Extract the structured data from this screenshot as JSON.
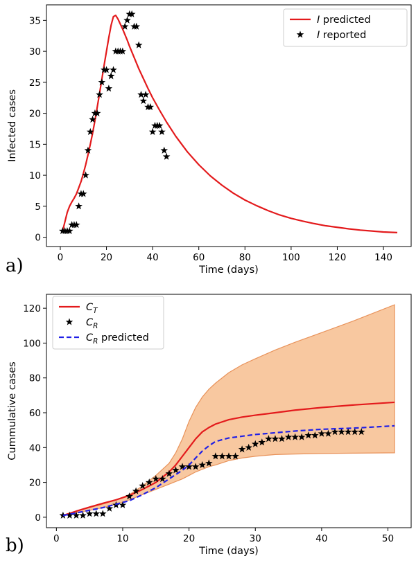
{
  "chart_data": [
    {
      "type": "line",
      "panel_label": "a)",
      "xlabel": "Time (days)",
      "ylabel": "Infected cases",
      "xlim": [
        -6,
        152
      ],
      "ylim": [
        -1.5,
        37.5
      ],
      "xticks": [
        0,
        20,
        40,
        60,
        80,
        100,
        120,
        140
      ],
      "yticks": [
        0,
        5,
        10,
        15,
        20,
        25,
        30,
        35
      ],
      "grid": false,
      "legend_position": "top-right",
      "series": [
        {
          "name": "I predicted",
          "name_italic": "I",
          "name_rest": " predicted",
          "kind": "line",
          "color": "#e31a1c",
          "x": [
            1,
            2,
            3,
            4,
            5,
            6,
            7,
            8,
            9,
            10,
            11,
            12,
            13,
            14,
            15,
            16,
            17,
            18,
            19,
            20,
            21,
            22,
            23,
            24,
            25,
            26,
            27,
            28,
            29,
            30,
            32,
            34,
            36,
            38,
            40,
            43,
            46,
            50,
            55,
            60,
            65,
            70,
            75,
            80,
            85,
            90,
            95,
            100,
            105,
            110,
            115,
            120,
            125,
            130,
            135,
            140,
            146
          ],
          "y": [
            1,
            2.5,
            4,
            5,
            5.7,
            6.3,
            7,
            8,
            9,
            10.3,
            11.7,
            13.3,
            15,
            16.8,
            18.8,
            21,
            23.2,
            25.5,
            27.8,
            30,
            32.2,
            34.2,
            35.6,
            35.8,
            35.2,
            34.4,
            33.6,
            32.7,
            31.8,
            30.8,
            29,
            27.2,
            25.6,
            24,
            22.5,
            20.5,
            18.6,
            16.3,
            13.8,
            11.7,
            9.9,
            8.4,
            7.1,
            6,
            5.1,
            4.3,
            3.6,
            3.05,
            2.6,
            2.2,
            1.85,
            1.6,
            1.35,
            1.15,
            1,
            0.85,
            0.75
          ]
        },
        {
          "name": "I reported",
          "name_italic": "I",
          "name_rest": " reported",
          "kind": "markers",
          "color": "#000000",
          "x": [
            1,
            2,
            3,
            4,
            5,
            6,
            7,
            8,
            9,
            10,
            11,
            12,
            13,
            14,
            15,
            16,
            17,
            18,
            19,
            20,
            21,
            22,
            23,
            24,
            25,
            26,
            27,
            28,
            29,
            30,
            31,
            32,
            33,
            34,
            35,
            36,
            37,
            38,
            39,
            40,
            41,
            42,
            43,
            44,
            45,
            46
          ],
          "y": [
            1,
            1,
            1,
            1,
            2,
            2,
            2,
            5,
            7,
            7,
            10,
            14,
            17,
            19,
            20,
            20,
            23,
            25,
            27,
            27,
            24,
            26,
            27,
            30,
            30,
            30,
            30,
            34,
            35,
            36,
            36,
            34,
            34,
            31,
            23,
            22,
            23,
            21,
            21,
            17,
            18,
            18,
            18,
            17,
            14,
            13
          ]
        }
      ]
    },
    {
      "type": "line",
      "panel_label": "b)",
      "xlabel": "Time (days)",
      "ylabel": "Cummulative cases",
      "xlim": [
        -1.5,
        53.5
      ],
      "ylim": [
        -6,
        128
      ],
      "xticks": [
        0,
        10,
        20,
        30,
        40,
        50
      ],
      "yticks": [
        0,
        20,
        40,
        60,
        80,
        100,
        120
      ],
      "grid": false,
      "legend_position": "top-left",
      "band": {
        "color": "#f4a361",
        "opacity": 0.6,
        "edge_color": "#e8925a",
        "x": [
          1,
          3,
          5,
          7,
          9,
          11,
          13,
          15,
          17,
          18,
          19,
          20,
          21,
          22,
          23,
          24,
          26,
          28,
          30,
          33,
          36,
          40,
          45,
          51
        ],
        "lower": [
          1,
          2.5,
          4,
          5.5,
          7.5,
          10,
          13,
          16,
          19,
          20.5,
          22,
          24,
          26,
          27.5,
          29,
          30,
          32.5,
          34,
          35,
          36,
          36.3,
          36.6,
          36.8,
          37
        ],
        "upper": [
          1.3,
          3.5,
          5.5,
          7.5,
          10,
          13,
          18,
          24,
          31,
          37,
          45,
          55,
          63,
          69,
          73.5,
          77,
          83,
          87.5,
          91,
          96,
          100.5,
          106,
          113,
          122
        ]
      },
      "series": [
        {
          "name": "C_T",
          "name_main": "C",
          "name_sub": "T",
          "name_rest": "",
          "kind": "line",
          "color": "#e31a1c",
          "x": [
            1,
            3,
            5,
            7,
            9,
            11,
            13,
            15,
            17,
            18,
            19,
            20,
            21,
            22,
            23,
            24,
            26,
            28,
            30,
            33,
            36,
            40,
            45,
            51
          ],
          "y": [
            1,
            3.5,
            5.8,
            8,
            10,
            12.5,
            16,
            20,
            26,
            30,
            35,
            40,
            45,
            49,
            51.5,
            53.5,
            56,
            57.5,
            58.6,
            60,
            61.5,
            63,
            64.5,
            66
          ]
        },
        {
          "name": "C_R",
          "name_main": "C",
          "name_sub": "R",
          "name_rest": "",
          "kind": "markers",
          "color": "#000000",
          "x": [
            1,
            2,
            3,
            4,
            5,
            6,
            7,
            8,
            9,
            10,
            11,
            12,
            13,
            14,
            15,
            16,
            17,
            18,
            19,
            20,
            21,
            22,
            23,
            24,
            25,
            26,
            27,
            28,
            29,
            30,
            31,
            32,
            33,
            34,
            35,
            36,
            37,
            38,
            39,
            40,
            41,
            42,
            43,
            44,
            45,
            46
          ],
          "y": [
            1,
            1,
            1,
            1,
            2,
            2,
            2,
            5,
            7,
            7,
            12,
            15,
            18,
            20,
            22,
            22,
            25,
            27,
            29,
            29,
            29,
            30,
            31,
            35,
            35,
            35,
            35,
            39,
            40,
            42,
            43,
            45,
            45,
            45,
            46,
            46,
            46,
            47,
            47,
            48,
            48,
            49,
            49,
            49,
            49,
            49
          ]
        },
        {
          "name": "C_R predicted",
          "name_main": "C",
          "name_sub": "R",
          "name_rest": " predicted",
          "kind": "dashed",
          "color": "#1f1fe6",
          "x": [
            1,
            3,
            5,
            7,
            9,
            11,
            13,
            15,
            17,
            19,
            20,
            21,
            22,
            23,
            24,
            26,
            28,
            30,
            33,
            36,
            40,
            45,
            51
          ],
          "y": [
            1,
            2.5,
            4,
            5.5,
            7.5,
            9.5,
            13,
            17,
            22,
            27,
            30,
            34,
            38,
            41,
            43.5,
            45.5,
            46.5,
            47.5,
            48.5,
            49.5,
            50.5,
            51.2,
            52.5
          ]
        }
      ]
    }
  ]
}
